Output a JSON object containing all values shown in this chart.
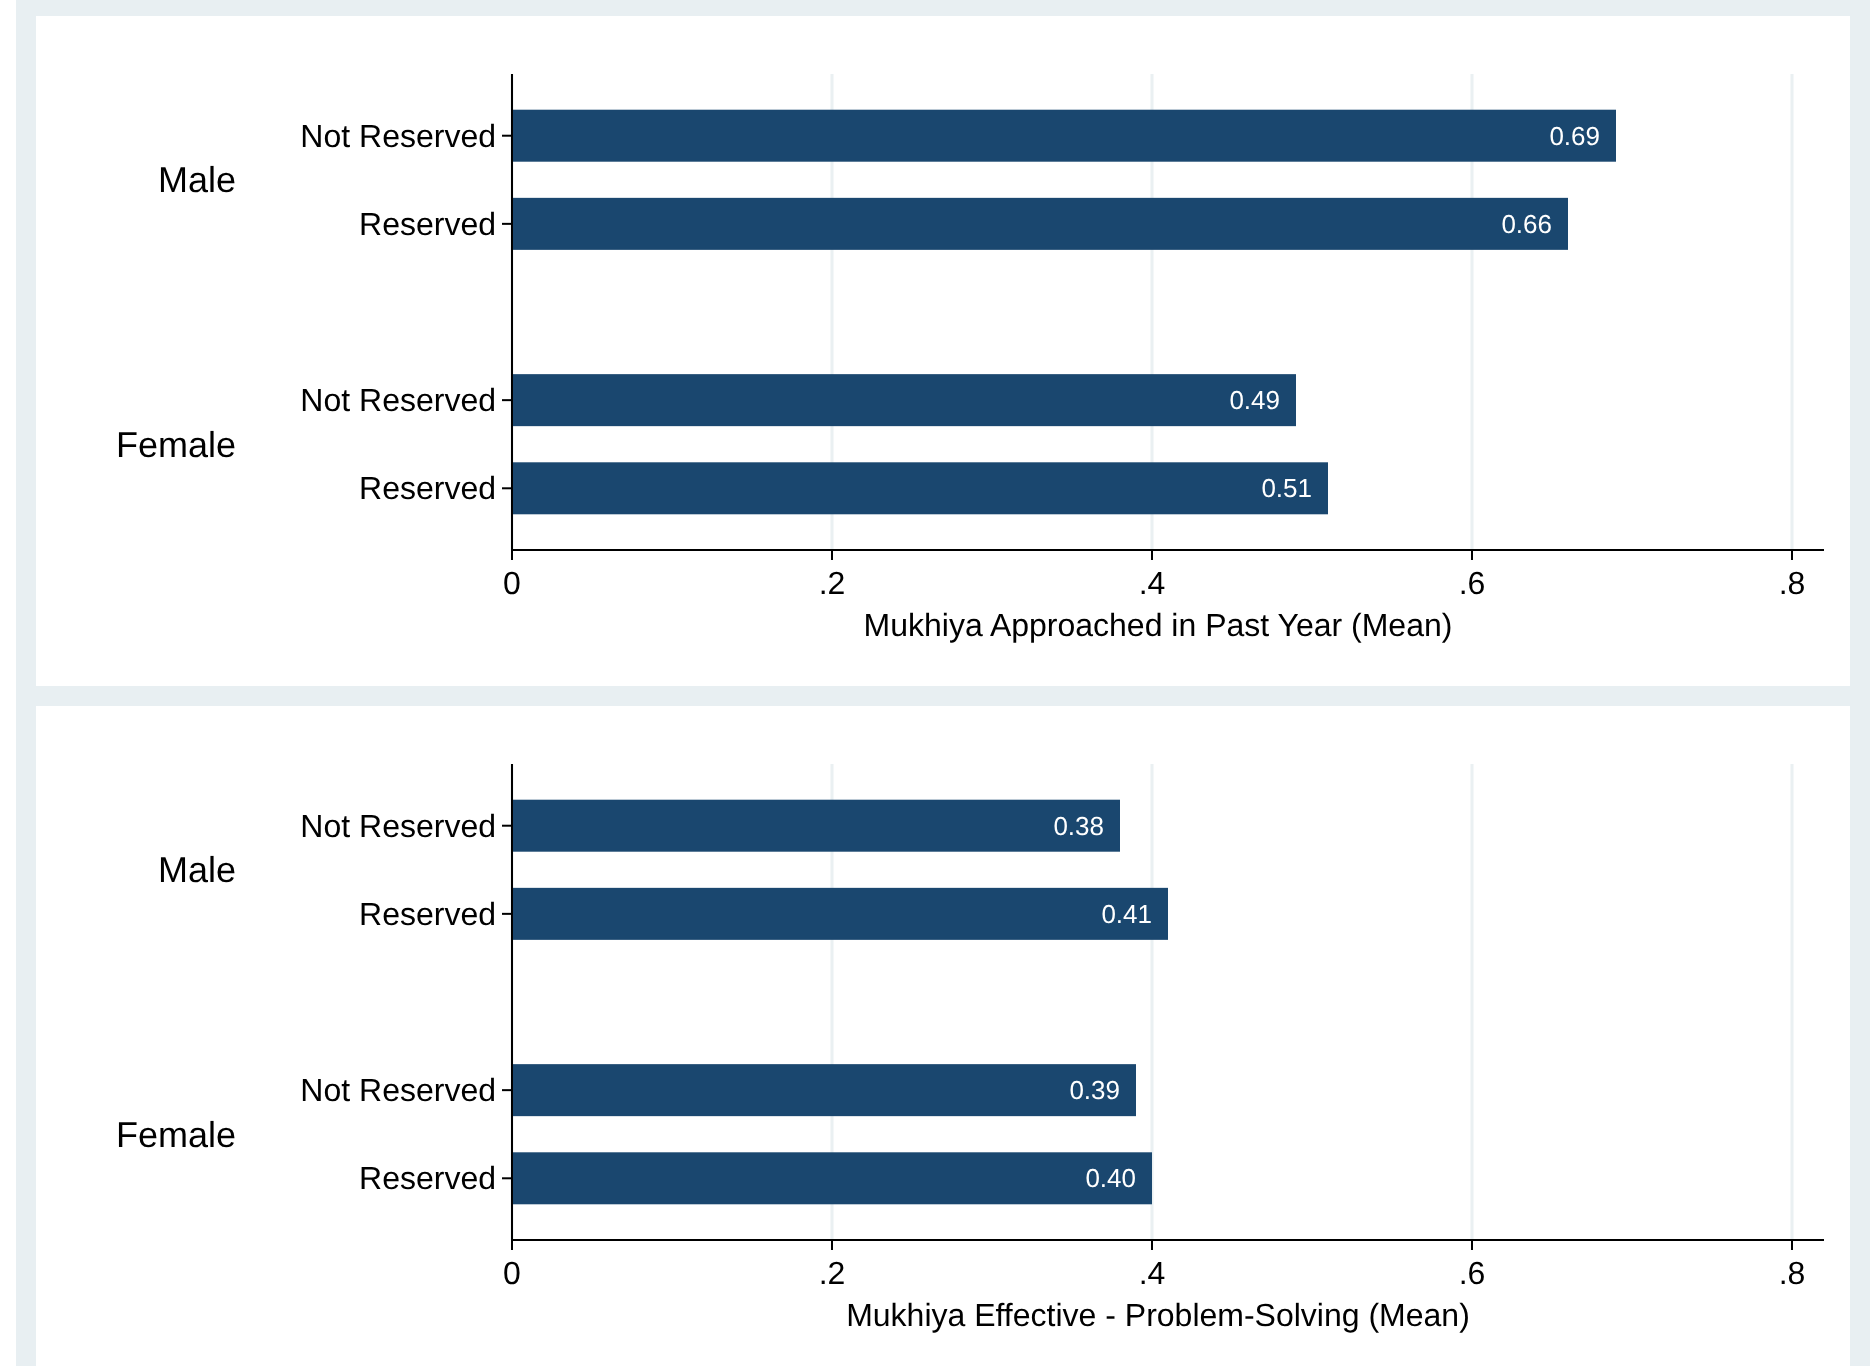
{
  "chart_data": [
    {
      "type": "bar",
      "orientation": "horizontal",
      "categories": [
        "Not Reserved",
        "Reserved",
        null,
        "Not Reserved",
        "Reserved"
      ],
      "annotations": [
        "Male",
        "Female"
      ],
      "values": [
        0.69,
        0.66,
        null,
        0.49,
        0.51
      ],
      "value_labels": [
        "0.69",
        "0.66",
        null,
        "0.49",
        "0.51"
      ],
      "color": "#1a476f",
      "xlim": [
        0,
        0.82
      ],
      "xticks": [
        0,
        {
          "value": 0.2,
          "label": ".2"
        },
        {
          "value": 0.4,
          "label": ".4"
        },
        {
          "value": 0.6,
          "label": ".6"
        },
        {
          "value": 0.8,
          "label": ".8"
        }
      ],
      "xlabel": "Mukhiya Approached in Past Year (Mean)",
      "grid": "x"
    },
    {
      "type": "bar",
      "orientation": "horizontal",
      "categories": [
        "Not Reserved",
        "Reserved",
        null,
        "Not Reserved",
        "Reserved"
      ],
      "annotations": [
        "Male",
        "Female"
      ],
      "values": [
        0.38,
        0.41,
        null,
        0.39,
        0.4
      ],
      "value_labels": [
        "0.38",
        "0.41",
        null,
        "0.39",
        "0.40"
      ],
      "color": "#1a476f",
      "xlim": [
        0,
        0.82
      ],
      "xticks": [
        0,
        {
          "value": 0.2,
          "label": ".2"
        },
        {
          "value": 0.4,
          "label": ".4"
        },
        {
          "value": 0.6,
          "label": ".6"
        },
        {
          "value": 0.8,
          "label": ".8"
        }
      ],
      "xlabel": "Mukhiya Effective - Problem-Solving (Mean)",
      "grid": "x"
    }
  ]
}
